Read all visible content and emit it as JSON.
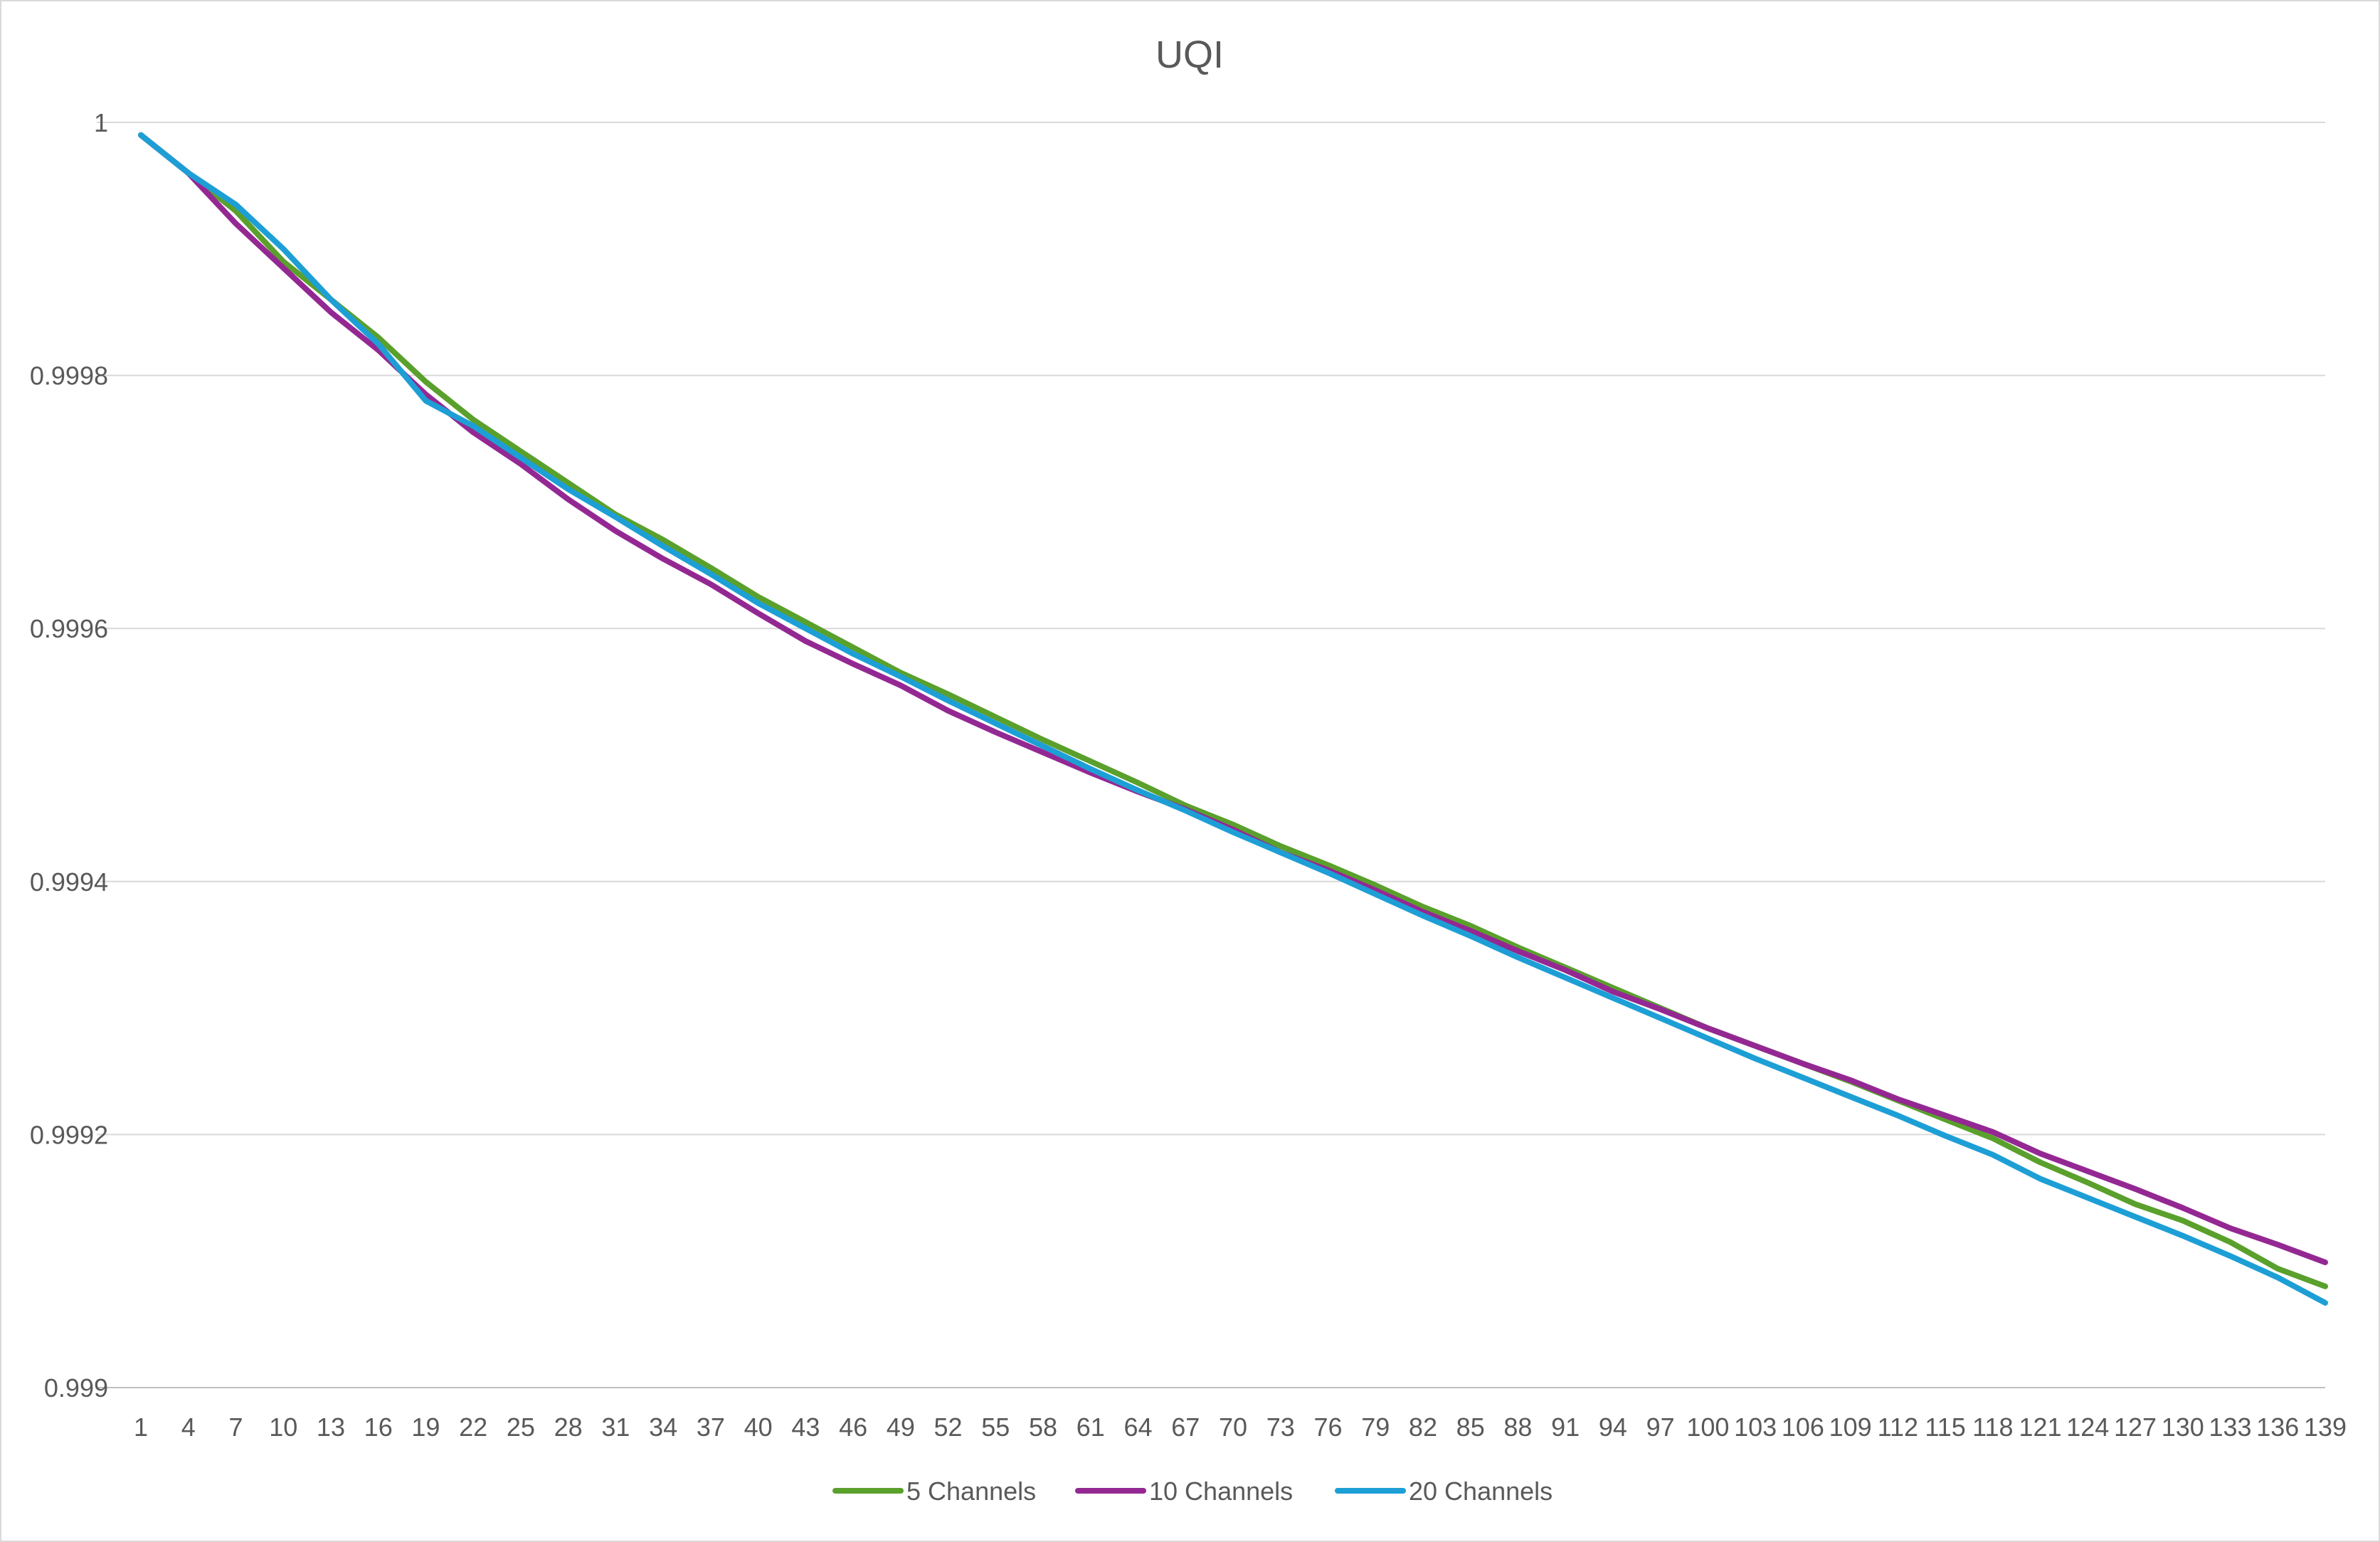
{
  "chart_data": {
    "type": "line",
    "title": "UQI",
    "xlabel": "",
    "ylabel": "",
    "x_start": 1,
    "x_end": 139,
    "x_tick_every": 3,
    "ylim": [
      0.999,
      1
    ],
    "y_ticks": [
      0.999,
      0.9992,
      0.9994,
      0.9996,
      0.9998,
      1
    ],
    "y_tick_labels": [
      "0.999",
      "0.9992",
      "0.9994",
      "0.9996",
      "0.9998",
      "1"
    ],
    "grid": true,
    "legend_position": "bottom",
    "series": [
      {
        "name": "5 Channels",
        "color": "#5aa02c",
        "key_points": [
          [
            1,
            0.99999
          ],
          [
            4,
            0.99996
          ],
          [
            7,
            0.99993
          ],
          [
            10,
            0.99989
          ],
          [
            13,
            0.99986
          ],
          [
            16,
            0.99983
          ],
          [
            19,
            0.999795
          ],
          [
            22,
            0.999765
          ],
          [
            25,
            0.99974
          ],
          [
            28,
            0.999715
          ],
          [
            31,
            0.99969
          ],
          [
            34,
            0.99967
          ],
          [
            37,
            0.999648
          ],
          [
            40,
            0.999625
          ],
          [
            43,
            0.999605
          ],
          [
            46,
            0.999585
          ],
          [
            49,
            0.999565
          ],
          [
            52,
            0.999548
          ],
          [
            55,
            0.99953
          ],
          [
            58,
            0.999512
          ],
          [
            61,
            0.999495
          ],
          [
            64,
            0.999478
          ],
          [
            67,
            0.99946
          ],
          [
            70,
            0.999445
          ],
          [
            73,
            0.999428
          ],
          [
            76,
            0.999413
          ],
          [
            79,
            0.999397
          ],
          [
            82,
            0.99938
          ],
          [
            85,
            0.999365
          ],
          [
            88,
            0.999348
          ],
          [
            91,
            0.999332
          ],
          [
            94,
            0.999316
          ],
          [
            97,
            0.9993
          ],
          [
            100,
            0.999284
          ],
          [
            103,
            0.99927
          ],
          [
            106,
            0.999256
          ],
          [
            109,
            0.999242
          ],
          [
            112,
            0.999227
          ],
          [
            115,
            0.999212
          ],
          [
            118,
            0.999197
          ],
          [
            121,
            0.999178
          ],
          [
            124,
            0.999162
          ],
          [
            127,
            0.999145
          ],
          [
            130,
            0.999132
          ],
          [
            133,
            0.999115
          ],
          [
            136,
            0.999094
          ],
          [
            139,
            0.99908
          ]
        ]
      },
      {
        "name": "10 Channels",
        "color": "#942893",
        "key_points": [
          [
            1,
            0.99999
          ],
          [
            4,
            0.99996
          ],
          [
            7,
            0.99992
          ],
          [
            10,
            0.999885
          ],
          [
            13,
            0.99985
          ],
          [
            16,
            0.99982
          ],
          [
            19,
            0.999785
          ],
          [
            22,
            0.999755
          ],
          [
            25,
            0.99973
          ],
          [
            28,
            0.999702
          ],
          [
            31,
            0.999677
          ],
          [
            34,
            0.999655
          ],
          [
            37,
            0.999635
          ],
          [
            40,
            0.999612
          ],
          [
            43,
            0.99959
          ],
          [
            46,
            0.999572
          ],
          [
            49,
            0.999555
          ],
          [
            52,
            0.999535
          ],
          [
            55,
            0.999518
          ],
          [
            58,
            0.999502
          ],
          [
            61,
            0.999486
          ],
          [
            64,
            0.999471
          ],
          [
            67,
            0.999457
          ],
          [
            70,
            0.999441
          ],
          [
            73,
            0.999423
          ],
          [
            76,
            0.999409
          ],
          [
            79,
            0.999393
          ],
          [
            82,
            0.999376
          ],
          [
            85,
            0.999361
          ],
          [
            88,
            0.999345
          ],
          [
            91,
            0.99933
          ],
          [
            94,
            0.999313
          ],
          [
            97,
            0.999299
          ],
          [
            100,
            0.999284
          ],
          [
            103,
            0.99927
          ],
          [
            106,
            0.999256
          ],
          [
            109,
            0.999243
          ],
          [
            112,
            0.999228
          ],
          [
            115,
            0.999215
          ],
          [
            118,
            0.999202
          ],
          [
            121,
            0.999185
          ],
          [
            124,
            0.999171
          ],
          [
            127,
            0.999157
          ],
          [
            130,
            0.999142
          ],
          [
            133,
            0.999126
          ],
          [
            136,
            0.999113
          ],
          [
            139,
            0.999099
          ]
        ]
      },
      {
        "name": "20 Channels",
        "color": "#1d9fd6",
        "key_points": [
          [
            1,
            0.99999
          ],
          [
            4,
            0.99996
          ],
          [
            7,
            0.999935
          ],
          [
            10,
            0.9999
          ],
          [
            13,
            0.99986
          ],
          [
            16,
            0.999825
          ],
          [
            19,
            0.99978
          ],
          [
            22,
            0.99976
          ],
          [
            25,
            0.999735
          ],
          [
            28,
            0.99971
          ],
          [
            31,
            0.999688
          ],
          [
            34,
            0.999665
          ],
          [
            37,
            0.999643
          ],
          [
            40,
            0.99962
          ],
          [
            43,
            0.9996
          ],
          [
            46,
            0.99958
          ],
          [
            49,
            0.999562
          ],
          [
            52,
            0.999543
          ],
          [
            55,
            0.999525
          ],
          [
            58,
            0.999507
          ],
          [
            61,
            0.999489
          ],
          [
            64,
            0.999472
          ],
          [
            67,
            0.999456
          ],
          [
            70,
            0.999439
          ],
          [
            73,
            0.999423
          ],
          [
            76,
            0.999407
          ],
          [
            79,
            0.99939
          ],
          [
            82,
            0.999373
          ],
          [
            85,
            0.999357
          ],
          [
            88,
            0.99934
          ],
          [
            91,
            0.999324
          ],
          [
            94,
            0.999308
          ],
          [
            97,
            0.999292
          ],
          [
            100,
            0.999276
          ],
          [
            103,
            0.99926
          ],
          [
            106,
            0.999245
          ],
          [
            109,
            0.99923
          ],
          [
            112,
            0.999215
          ],
          [
            115,
            0.999199
          ],
          [
            118,
            0.999184
          ],
          [
            121,
            0.999165
          ],
          [
            124,
            0.99915
          ],
          [
            127,
            0.999135
          ],
          [
            130,
            0.99912
          ],
          [
            133,
            0.999104
          ],
          [
            136,
            0.999087
          ],
          [
            139,
            0.999067
          ]
        ]
      }
    ]
  }
}
